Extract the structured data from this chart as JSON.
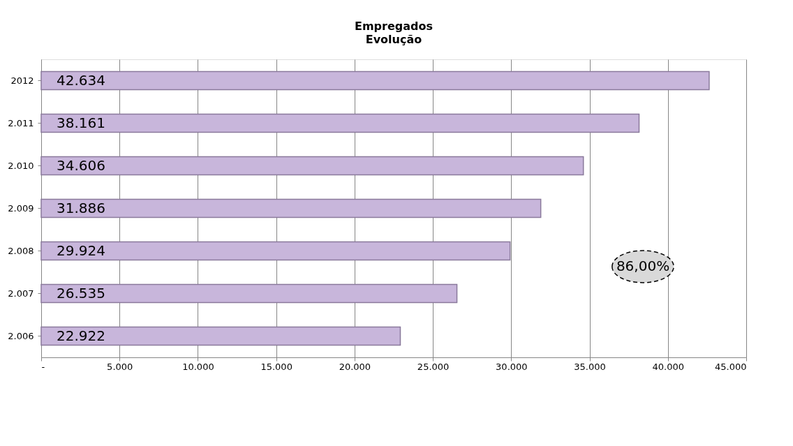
{
  "chart_data": {
    "type": "bar",
    "orientation": "horizontal",
    "title": "Empregados",
    "subtitle": "Evolução",
    "categories": [
      "2012",
      "2.011",
      "2.010",
      "2.009",
      "2.008",
      "2.007",
      "2.006"
    ],
    "values": [
      42634,
      38161,
      34606,
      31886,
      29924,
      26535,
      22922
    ],
    "value_labels": [
      "42.634",
      "38.161",
      "34.606",
      "31.886",
      "29.924",
      "26.535",
      "22.922"
    ],
    "color": "#c8b6db",
    "xlim": [
      0,
      45000
    ],
    "xticks": [
      {
        "value": 0,
        "label": "-"
      },
      {
        "value": 5000,
        "label": "5.000"
      },
      {
        "value": 10000,
        "label": "10.000"
      },
      {
        "value": 15000,
        "label": "15.000"
      },
      {
        "value": 20000,
        "label": "20.000"
      },
      {
        "value": 25000,
        "label": "25.000"
      },
      {
        "value": 30000,
        "label": "30.000"
      },
      {
        "value": 35000,
        "label": "35.000"
      },
      {
        "value": 40000,
        "label": "40.000"
      },
      {
        "value": 45000,
        "label": "45.000"
      }
    ],
    "grid": "x",
    "annotations": [
      "86,00%"
    ]
  }
}
